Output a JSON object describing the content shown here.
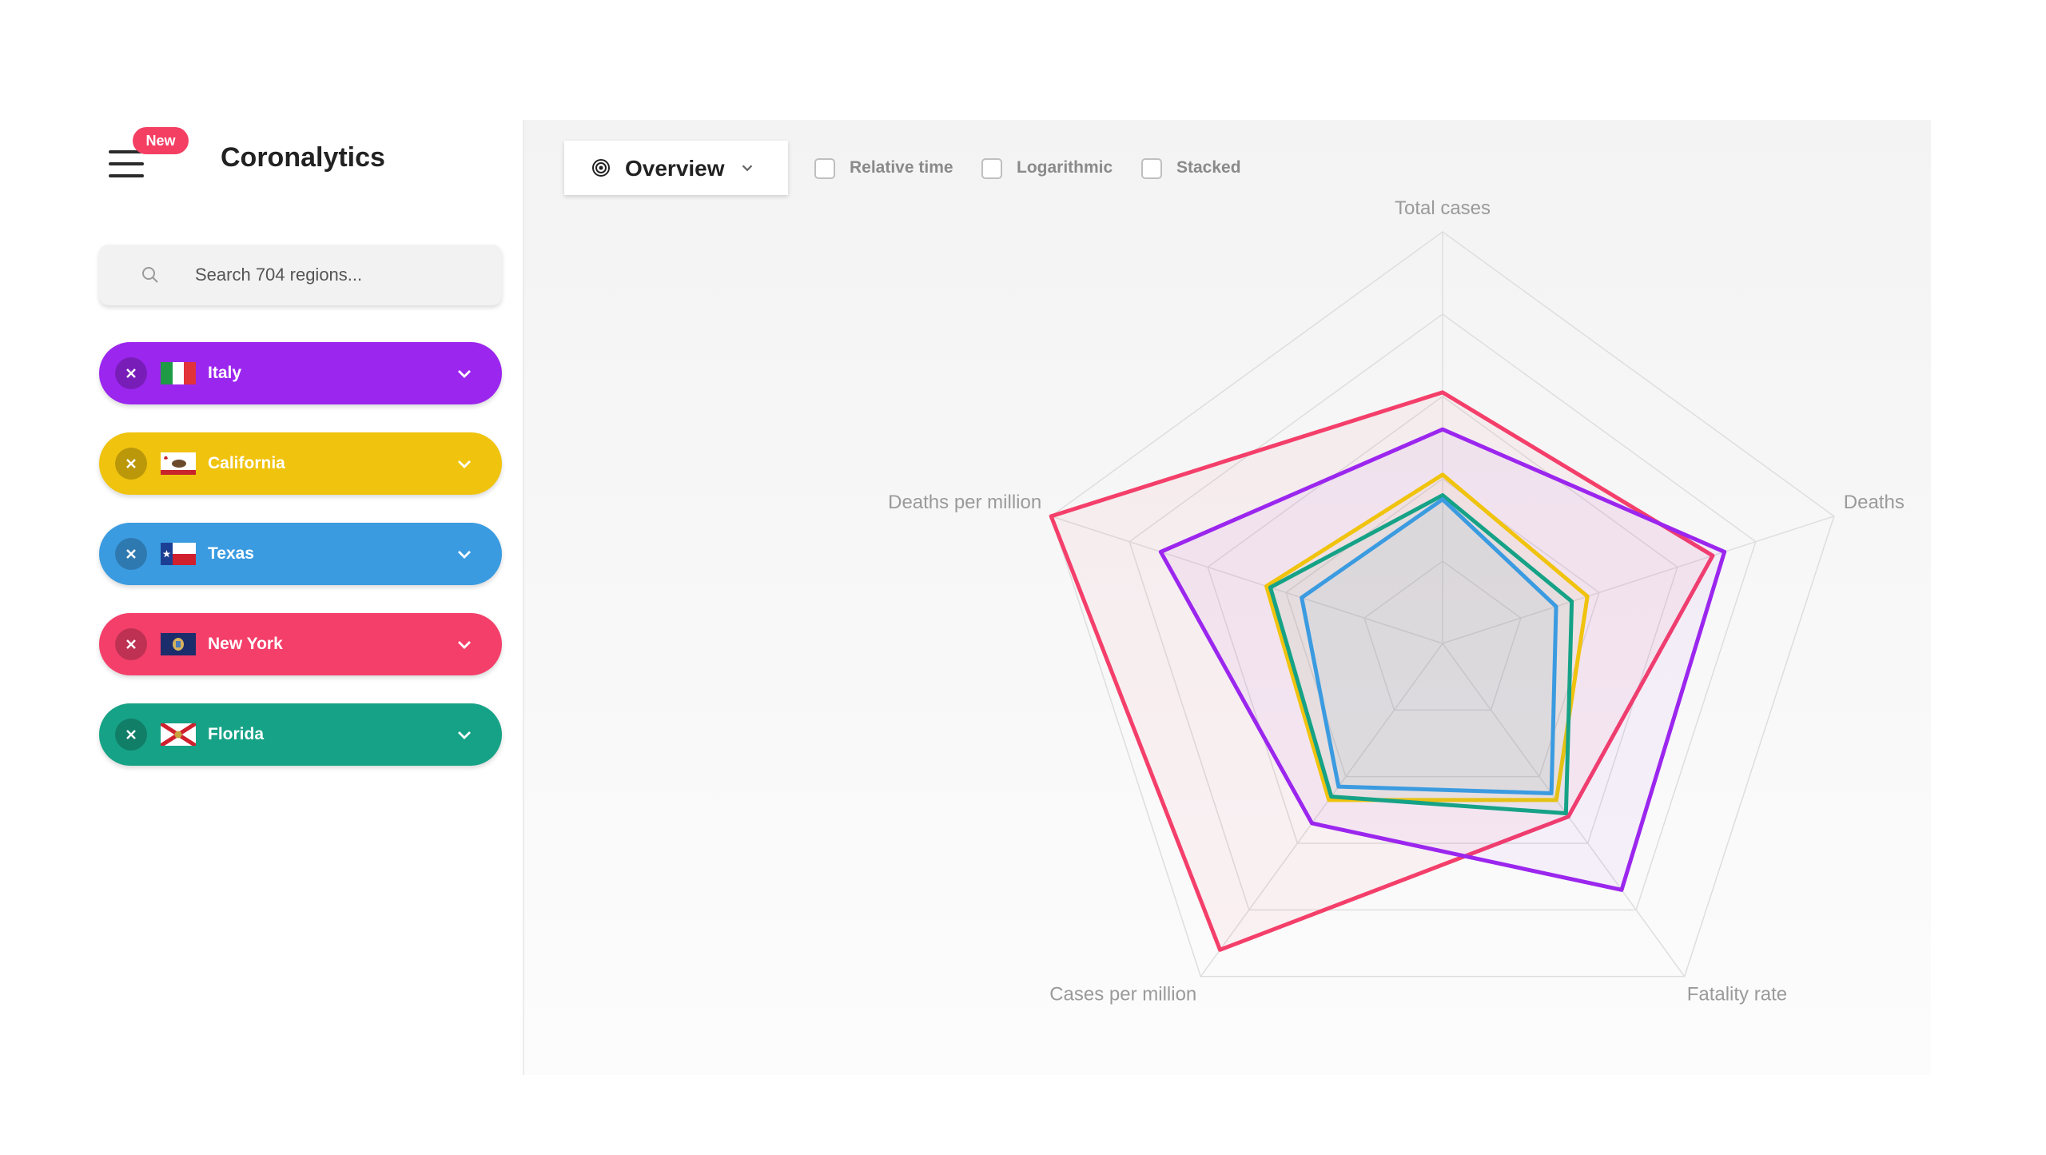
{
  "app": {
    "title": "Coronalytics",
    "badge": "New"
  },
  "search": {
    "placeholder": "Search 704 regions..."
  },
  "regions": [
    {
      "name": "Italy",
      "color": "#9b26ee",
      "flag": "italy-flag"
    },
    {
      "name": "California",
      "color": "#f0c30e",
      "flag": "california-flag"
    },
    {
      "name": "Texas",
      "color": "#3b9be0",
      "flag": "texas-flag"
    },
    {
      "name": "New York",
      "color": "#f43f6a",
      "flag": "new-york-flag"
    },
    {
      "name": "Florida",
      "color": "#16a286",
      "flag": "florida-flag"
    }
  ],
  "toolbar": {
    "view": "Overview",
    "options": [
      {
        "label": "Relative time",
        "checked": false
      },
      {
        "label": "Logarithmic",
        "checked": false
      },
      {
        "label": "Stacked",
        "checked": false
      }
    ]
  },
  "chart_data": {
    "type": "radar",
    "axes": [
      "Total cases",
      "Deaths",
      "Fatality rate",
      "Cases per million",
      "Deaths per million"
    ],
    "rmax": 1,
    "rings": 5,
    "grid": true,
    "series": [
      {
        "name": "New York",
        "color": "#f43f6a",
        "values": [
          0.61,
          0.69,
          0.52,
          0.92,
          1.0
        ]
      },
      {
        "name": "Italy",
        "color": "#9b26ee",
        "values": [
          0.52,
          0.72,
          0.74,
          0.54,
          0.72
        ]
      },
      {
        "name": "California",
        "color": "#f0c30e",
        "values": [
          0.41,
          0.37,
          0.47,
          0.47,
          0.45
        ]
      },
      {
        "name": "Florida",
        "color": "#16a286",
        "values": [
          0.36,
          0.33,
          0.51,
          0.46,
          0.44
        ]
      },
      {
        "name": "Texas",
        "color": "#3b9be0",
        "values": [
          0.35,
          0.29,
          0.45,
          0.43,
          0.36
        ]
      }
    ]
  }
}
